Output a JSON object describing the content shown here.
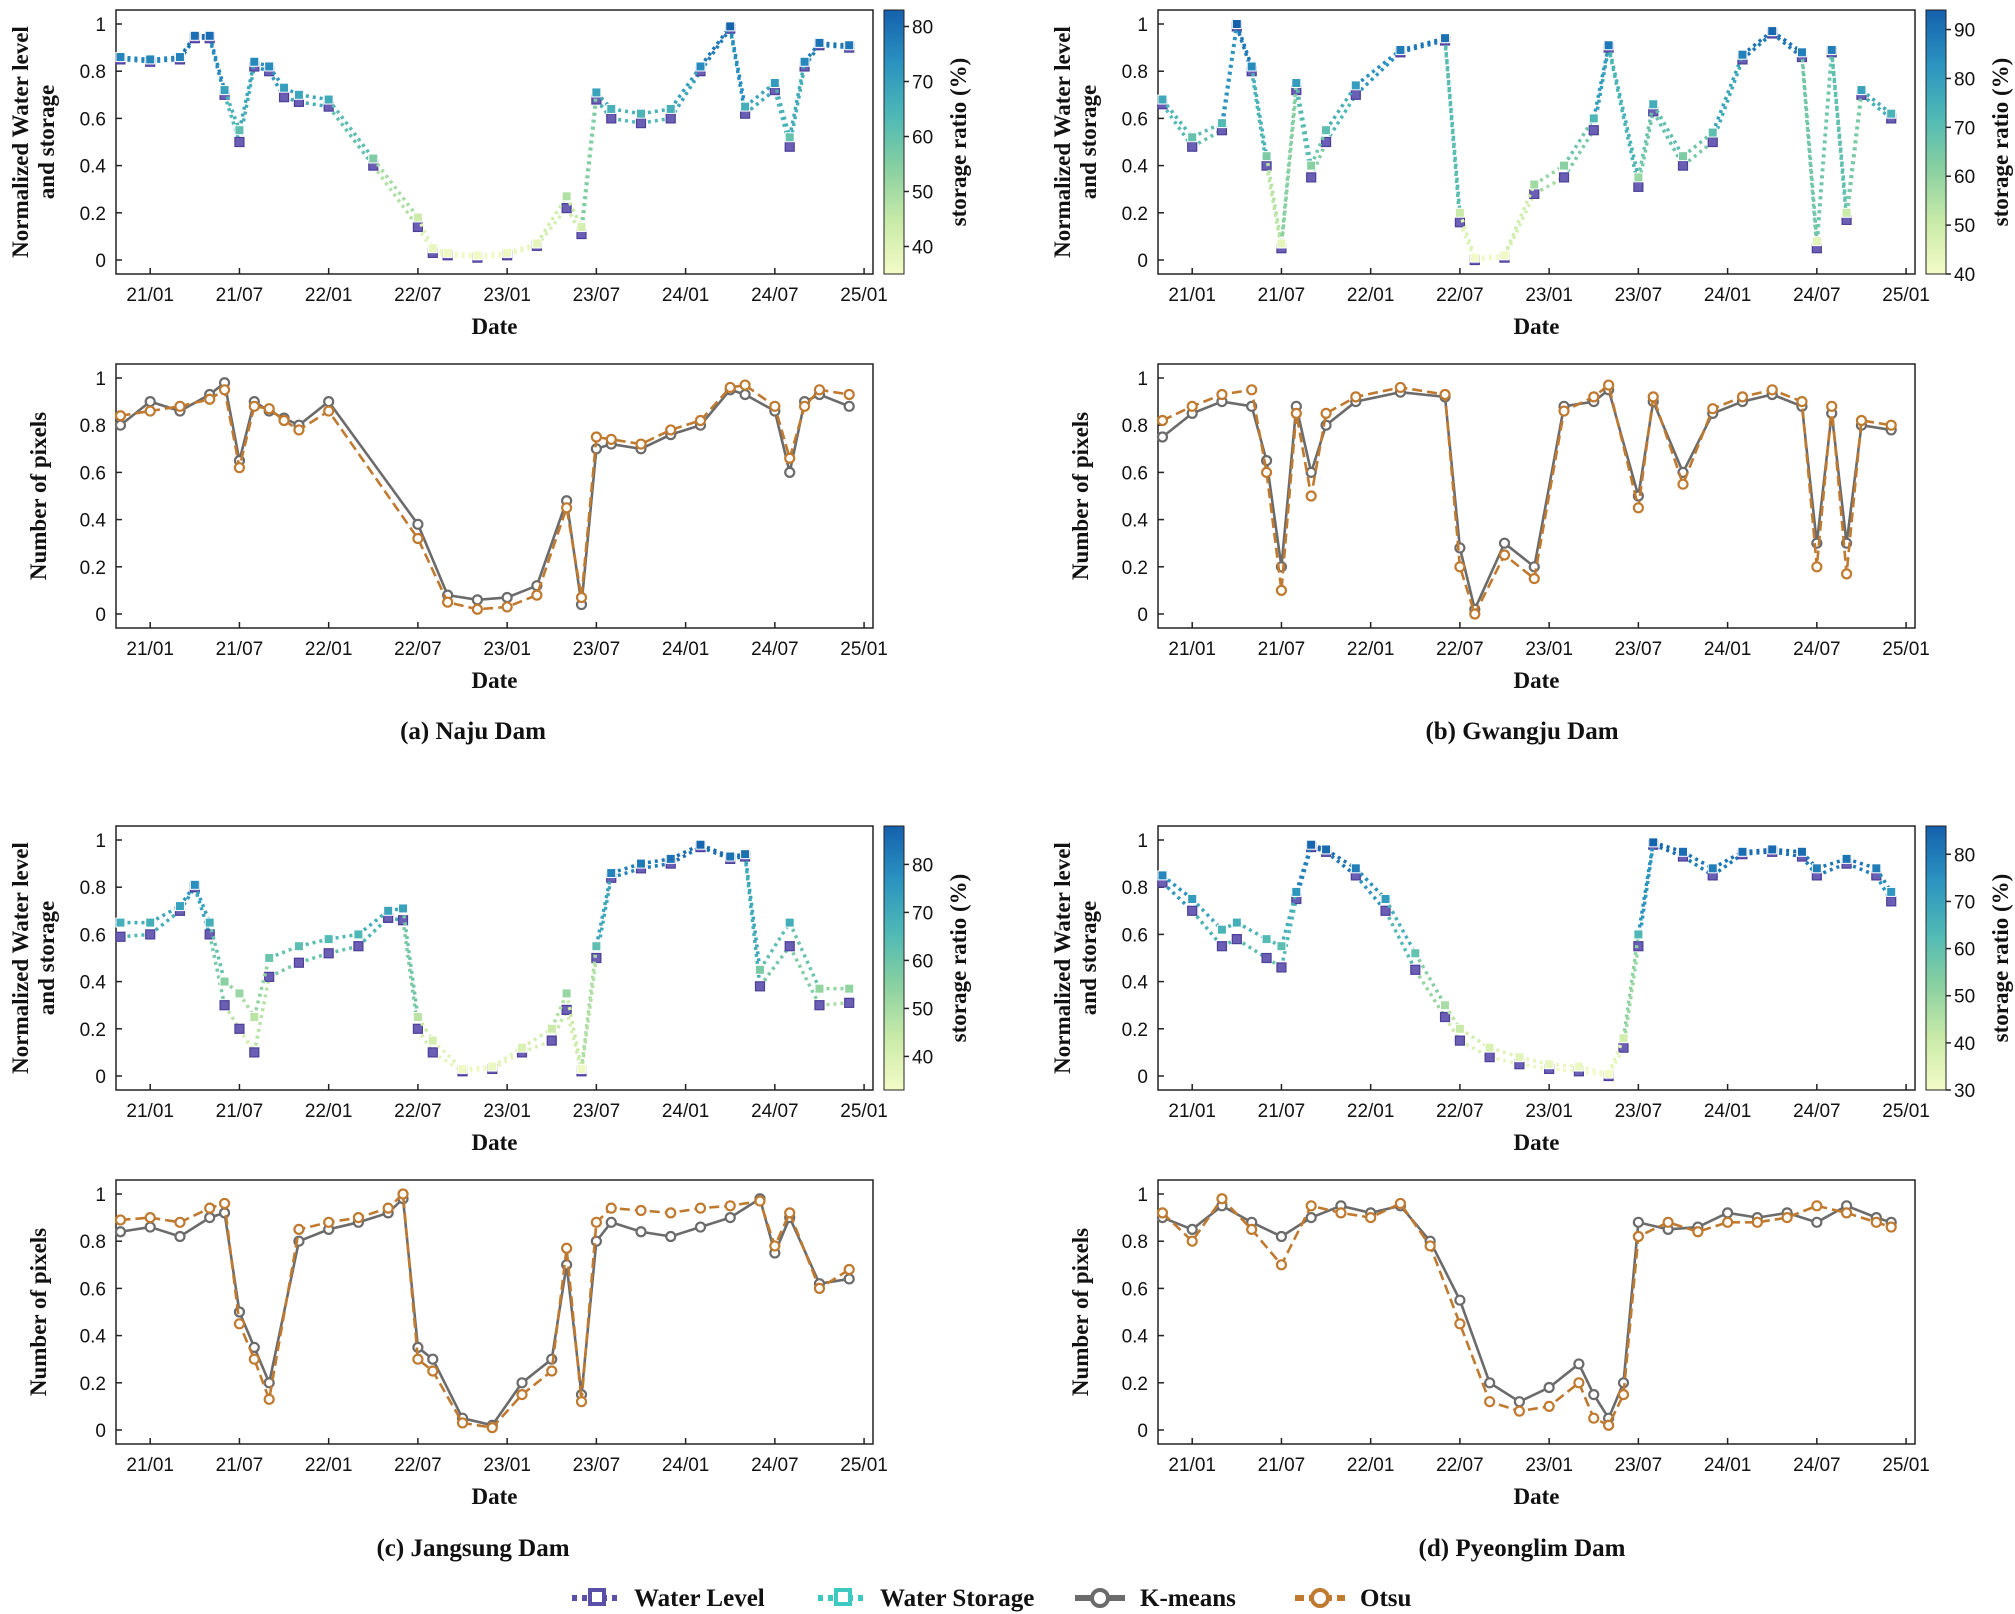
{
  "legend": [
    {
      "label": "Water Level",
      "color": "#5a4fa6",
      "marker": "square",
      "dash": "dotted"
    },
    {
      "label": "Water Storage",
      "color": "#3ec9c0",
      "marker": "square",
      "dash": "dotted"
    },
    {
      "label": "K-means",
      "color": "#6b6b6b",
      "marker": "circle",
      "dash": "solid"
    },
    {
      "label": "Otsu",
      "color": "#c07a30",
      "marker": "circle",
      "dash": "dashed"
    }
  ],
  "x_ticks": [
    "21/01",
    "21/07",
    "22/01",
    "22/07",
    "23/01",
    "23/07",
    "24/01",
    "24/07",
    "25/01"
  ],
  "colormap": [
    "#f4fbc7",
    "#c9eaa8",
    "#88d0a1",
    "#4eb8b6",
    "#2a92c0",
    "#1560ad"
  ],
  "chart_data": [
    {
      "type": "scatter",
      "dam": "Naju Dam",
      "caption": "(a) Naju Dam",
      "panel": "level",
      "xlabel": "Date",
      "ylabel": [
        "Normalized Water level",
        "and storage"
      ],
      "ylim": [
        0,
        1
      ],
      "yticks": [
        "0",
        "0.2",
        "0.4",
        "0.6",
        "0.8",
        "1"
      ],
      "colorbar": {
        "label": "storage ratio (%)",
        "min": 35,
        "max": 83,
        "ticks": [
          40,
          50,
          60,
          70,
          80
        ]
      },
      "x": [
        "20/11",
        "21/01",
        "21/03",
        "21/04",
        "21/05",
        "21/06",
        "21/07",
        "21/08",
        "21/09",
        "21/10",
        "21/11",
        "22/01",
        "22/04",
        "22/07",
        "22/08",
        "22/09",
        "22/11",
        "23/01",
        "23/03",
        "23/05",
        "23/06",
        "23/07",
        "23/08",
        "23/10",
        "23/12",
        "24/02",
        "24/04",
        "24/05",
        "24/07",
        "24/08",
        "24/09",
        "24/10",
        "24/12"
      ],
      "series": [
        {
          "name": "Water Level",
          "values": [
            0.85,
            0.84,
            0.85,
            0.94,
            0.94,
            0.7,
            0.5,
            0.82,
            0.8,
            0.69,
            0.67,
            0.65,
            0.4,
            0.14,
            0.03,
            0.02,
            0.01,
            0.02,
            0.06,
            0.22,
            0.11,
            0.68,
            0.6,
            0.58,
            0.6,
            0.8,
            0.98,
            0.62,
            0.72,
            0.48,
            0.82,
            0.91,
            0.9
          ]
        },
        {
          "name": "Water Storage",
          "values": [
            0.86,
            0.85,
            0.86,
            0.95,
            0.95,
            0.72,
            0.55,
            0.84,
            0.82,
            0.73,
            0.7,
            0.68,
            0.43,
            0.18,
            0.05,
            0.03,
            0.02,
            0.03,
            0.07,
            0.27,
            0.14,
            0.71,
            0.64,
            0.62,
            0.64,
            0.82,
            0.99,
            0.65,
            0.75,
            0.52,
            0.84,
            0.92,
            0.91
          ]
        }
      ]
    },
    {
      "type": "line",
      "dam": "Naju Dam",
      "panel": "pixels",
      "xlabel": "Date",
      "ylabel": "Number of pixels",
      "ylim": [
        0,
        1
      ],
      "yticks": [
        "0",
        "0.2",
        "0.4",
        "0.6",
        "0.8",
        "1"
      ],
      "x": [
        "20/11",
        "21/01",
        "21/03",
        "21/05",
        "21/06",
        "21/07",
        "21/08",
        "21/09",
        "21/10",
        "21/11",
        "22/01",
        "22/07",
        "22/09",
        "22/11",
        "23/01",
        "23/03",
        "23/05",
        "23/06",
        "23/07",
        "23/08",
        "23/10",
        "23/12",
        "24/02",
        "24/04",
        "24/05",
        "24/07",
        "24/08",
        "24/09",
        "24/10",
        "24/12"
      ],
      "series": [
        {
          "name": "K-means",
          "values": [
            0.8,
            0.9,
            0.86,
            0.93,
            0.98,
            0.65,
            0.9,
            0.86,
            0.83,
            0.8,
            0.9,
            0.38,
            0.08,
            0.06,
            0.07,
            0.12,
            0.48,
            0.04,
            0.7,
            0.72,
            0.7,
            0.76,
            0.8,
            0.95,
            0.93,
            0.86,
            0.6,
            0.9,
            0.93,
            0.88
          ]
        },
        {
          "name": "Otsu",
          "values": [
            0.84,
            0.86,
            0.88,
            0.91,
            0.95,
            0.62,
            0.88,
            0.87,
            0.82,
            0.78,
            0.86,
            0.32,
            0.05,
            0.02,
            0.03,
            0.08,
            0.45,
            0.07,
            0.75,
            0.74,
            0.72,
            0.78,
            0.82,
            0.96,
            0.97,
            0.88,
            0.66,
            0.88,
            0.95,
            0.93
          ]
        }
      ]
    },
    {
      "type": "scatter",
      "dam": "Gwangju Dam",
      "caption": "(b) Gwangju Dam",
      "panel": "level",
      "xlabel": "Date",
      "ylabel": [
        "Normalized Water level",
        "and storage"
      ],
      "ylim": [
        0,
        1
      ],
      "yticks": [
        "0",
        "0.2",
        "0.4",
        "0.6",
        "0.8",
        "1"
      ],
      "colorbar": {
        "label": "storage ratio (%)",
        "min": 40,
        "max": 94,
        "ticks": [
          40,
          50,
          60,
          70,
          80,
          90
        ]
      },
      "x": [
        "20/11",
        "21/01",
        "21/03",
        "21/04",
        "21/05",
        "21/06",
        "21/07",
        "21/08",
        "21/09",
        "21/10",
        "21/12",
        "22/03",
        "22/06",
        "22/07",
        "22/08",
        "22/10",
        "22/12",
        "23/02",
        "23/04",
        "23/05",
        "23/07",
        "23/08",
        "23/10",
        "23/12",
        "24/02",
        "24/04",
        "24/06",
        "24/07",
        "24/08",
        "24/09",
        "24/10",
        "24/12"
      ],
      "series": [
        {
          "name": "Water Level",
          "values": [
            0.66,
            0.48,
            0.55,
            0.99,
            0.8,
            0.4,
            0.05,
            0.72,
            0.35,
            0.5,
            0.7,
            0.88,
            0.93,
            0.16,
            0.0,
            0.01,
            0.28,
            0.35,
            0.55,
            0.9,
            0.31,
            0.63,
            0.4,
            0.5,
            0.85,
            0.96,
            0.86,
            0.05,
            0.88,
            0.17,
            0.7,
            0.6
          ]
        },
        {
          "name": "Water Storage",
          "values": [
            0.68,
            0.52,
            0.58,
            1.0,
            0.82,
            0.44,
            0.07,
            0.75,
            0.4,
            0.55,
            0.74,
            0.89,
            0.94,
            0.2,
            0.01,
            0.02,
            0.32,
            0.4,
            0.6,
            0.91,
            0.35,
            0.66,
            0.44,
            0.54,
            0.87,
            0.97,
            0.88,
            0.08,
            0.89,
            0.2,
            0.72,
            0.62
          ]
        }
      ]
    },
    {
      "type": "line",
      "dam": "Gwangju Dam",
      "panel": "pixels",
      "xlabel": "Date",
      "ylabel": "Number of pixels",
      "ylim": [
        0,
        1
      ],
      "yticks": [
        "0",
        "0.2",
        "0.4",
        "0.6",
        "0.8",
        "1"
      ],
      "x": [
        "20/11",
        "21/01",
        "21/03",
        "21/05",
        "21/06",
        "21/07",
        "21/08",
        "21/09",
        "21/10",
        "21/12",
        "22/03",
        "22/06",
        "22/07",
        "22/08",
        "22/10",
        "22/12",
        "23/02",
        "23/04",
        "23/05",
        "23/07",
        "23/08",
        "23/10",
        "23/12",
        "24/02",
        "24/04",
        "24/06",
        "24/07",
        "24/08",
        "24/09",
        "24/10",
        "24/12"
      ],
      "series": [
        {
          "name": "K-means",
          "values": [
            0.75,
            0.85,
            0.9,
            0.88,
            0.65,
            0.2,
            0.88,
            0.6,
            0.8,
            0.9,
            0.94,
            0.92,
            0.28,
            0.02,
            0.3,
            0.2,
            0.88,
            0.9,
            0.95,
            0.5,
            0.9,
            0.6,
            0.85,
            0.9,
            0.93,
            0.88,
            0.3,
            0.85,
            0.3,
            0.8,
            0.78
          ]
        },
        {
          "name": "Otsu",
          "values": [
            0.82,
            0.88,
            0.93,
            0.95,
            0.6,
            0.1,
            0.85,
            0.5,
            0.85,
            0.92,
            0.96,
            0.93,
            0.2,
            0.0,
            0.25,
            0.15,
            0.86,
            0.92,
            0.97,
            0.45,
            0.92,
            0.55,
            0.87,
            0.92,
            0.95,
            0.9,
            0.2,
            0.88,
            0.17,
            0.82,
            0.8
          ]
        }
      ]
    },
    {
      "type": "scatter",
      "dam": "Jangsung Dam",
      "caption": "(c) Jangsung Dam",
      "panel": "level",
      "xlabel": "Date",
      "ylabel": [
        "Normalized Water level",
        "and storage"
      ],
      "ylim": [
        0,
        1
      ],
      "yticks": [
        "0",
        "0.2",
        "0.4",
        "0.6",
        "0.8",
        "1"
      ],
      "colorbar": {
        "label": "storage ratio (%)",
        "min": 33,
        "max": 88,
        "ticks": [
          40,
          50,
          60,
          70,
          80
        ]
      },
      "x": [
        "20/11",
        "21/01",
        "21/03",
        "21/04",
        "21/05",
        "21/06",
        "21/07",
        "21/08",
        "21/09",
        "21/11",
        "22/01",
        "22/03",
        "22/05",
        "22/06",
        "22/07",
        "22/08",
        "22/10",
        "22/12",
        "23/02",
        "23/04",
        "23/05",
        "23/06",
        "23/07",
        "23/08",
        "23/10",
        "23/12",
        "24/02",
        "24/04",
        "24/05",
        "24/06",
        "24/08",
        "24/10",
        "24/12"
      ],
      "series": [
        {
          "name": "Water Level",
          "values": [
            0.59,
            0.6,
            0.7,
            0.8,
            0.6,
            0.3,
            0.2,
            0.1,
            0.42,
            0.48,
            0.52,
            0.55,
            0.67,
            0.66,
            0.2,
            0.1,
            0.02,
            0.03,
            0.1,
            0.15,
            0.28,
            0.02,
            0.5,
            0.84,
            0.88,
            0.9,
            0.97,
            0.92,
            0.93,
            0.38,
            0.55,
            0.3,
            0.31
          ]
        },
        {
          "name": "Water Storage",
          "values": [
            0.65,
            0.65,
            0.72,
            0.81,
            0.65,
            0.4,
            0.35,
            0.25,
            0.5,
            0.55,
            0.58,
            0.6,
            0.7,
            0.71,
            0.25,
            0.15,
            0.03,
            0.04,
            0.12,
            0.2,
            0.35,
            0.03,
            0.55,
            0.86,
            0.9,
            0.92,
            0.98,
            0.93,
            0.94,
            0.45,
            0.65,
            0.37,
            0.37
          ]
        }
      ]
    },
    {
      "type": "line",
      "dam": "Jangsung Dam",
      "panel": "pixels",
      "xlabel": "Date",
      "ylabel": "Number of pixels",
      "ylim": [
        0,
        1
      ],
      "yticks": [
        "0",
        "0.2",
        "0.4",
        "0.6",
        "0.8",
        "1"
      ],
      "x": [
        "20/11",
        "21/01",
        "21/03",
        "21/05",
        "21/06",
        "21/07",
        "21/08",
        "21/09",
        "21/11",
        "22/01",
        "22/03",
        "22/05",
        "22/06",
        "22/07",
        "22/08",
        "22/10",
        "22/12",
        "23/02",
        "23/04",
        "23/05",
        "23/06",
        "23/07",
        "23/08",
        "23/10",
        "23/12",
        "24/02",
        "24/04",
        "24/06",
        "24/07",
        "24/08",
        "24/10",
        "24/12"
      ],
      "series": [
        {
          "name": "K-means",
          "values": [
            0.84,
            0.86,
            0.82,
            0.9,
            0.92,
            0.5,
            0.35,
            0.2,
            0.8,
            0.85,
            0.88,
            0.92,
            0.98,
            0.35,
            0.3,
            0.05,
            0.02,
            0.2,
            0.3,
            0.7,
            0.15,
            0.8,
            0.88,
            0.84,
            0.82,
            0.86,
            0.9,
            0.98,
            0.75,
            0.9,
            0.62,
            0.64
          ]
        },
        {
          "name": "Otsu",
          "values": [
            0.89,
            0.9,
            0.88,
            0.94,
            0.96,
            0.45,
            0.3,
            0.13,
            0.85,
            0.88,
            0.9,
            0.94,
            1.0,
            0.3,
            0.25,
            0.03,
            0.01,
            0.15,
            0.25,
            0.77,
            0.12,
            0.88,
            0.94,
            0.93,
            0.92,
            0.94,
            0.95,
            0.97,
            0.78,
            0.92,
            0.6,
            0.68
          ]
        }
      ]
    },
    {
      "type": "scatter",
      "dam": "Pyeonglim Dam",
      "caption": "(d) Pyeonglim Dam",
      "panel": "level",
      "xlabel": "Date",
      "ylabel": [
        "Normalized Water level",
        "and storage"
      ],
      "ylim": [
        0,
        1
      ],
      "yticks": [
        "0",
        "0.2",
        "0.4",
        "0.6",
        "0.8",
        "1"
      ],
      "colorbar": {
        "label": "storage ratio (%)",
        "min": 30,
        "max": 86,
        "ticks": [
          30,
          40,
          50,
          60,
          70,
          80
        ]
      },
      "x": [
        "20/11",
        "21/01",
        "21/03",
        "21/04",
        "21/06",
        "21/07",
        "21/08",
        "21/09",
        "21/10",
        "21/12",
        "22/02",
        "22/04",
        "22/06",
        "22/07",
        "22/09",
        "22/11",
        "23/01",
        "23/03",
        "23/05",
        "23/06",
        "23/07",
        "23/08",
        "23/10",
        "23/12",
        "24/02",
        "24/04",
        "24/06",
        "24/07",
        "24/09",
        "24/11",
        "24/12"
      ],
      "series": [
        {
          "name": "Water Level",
          "values": [
            0.82,
            0.7,
            0.55,
            0.58,
            0.5,
            0.46,
            0.75,
            0.97,
            0.95,
            0.85,
            0.7,
            0.45,
            0.25,
            0.15,
            0.08,
            0.05,
            0.03,
            0.02,
            0.0,
            0.12,
            0.55,
            0.98,
            0.93,
            0.85,
            0.94,
            0.95,
            0.93,
            0.85,
            0.9,
            0.85,
            0.74
          ]
        },
        {
          "name": "Water Storage",
          "values": [
            0.85,
            0.75,
            0.62,
            0.65,
            0.58,
            0.55,
            0.78,
            0.98,
            0.96,
            0.88,
            0.75,
            0.52,
            0.3,
            0.2,
            0.12,
            0.08,
            0.05,
            0.04,
            0.01,
            0.16,
            0.6,
            0.99,
            0.95,
            0.88,
            0.95,
            0.96,
            0.95,
            0.88,
            0.92,
            0.88,
            0.78
          ]
        }
      ]
    },
    {
      "type": "line",
      "dam": "Pyeonglim Dam",
      "panel": "pixels",
      "xlabel": "Date",
      "ylabel": "Number of pixels",
      "ylim": [
        0,
        1
      ],
      "yticks": [
        "0",
        "0.2",
        "0.4",
        "0.6",
        "0.8",
        "1"
      ],
      "x": [
        "20/11",
        "21/01",
        "21/03",
        "21/05",
        "21/07",
        "21/09",
        "21/11",
        "22/01",
        "22/03",
        "22/05",
        "22/07",
        "22/09",
        "22/11",
        "23/01",
        "23/03",
        "23/04",
        "23/05",
        "23/06",
        "23/07",
        "23/09",
        "23/11",
        "24/01",
        "24/03",
        "24/05",
        "24/07",
        "24/09",
        "24/11",
        "24/12"
      ],
      "series": [
        {
          "name": "K-means",
          "values": [
            0.9,
            0.85,
            0.95,
            0.88,
            0.82,
            0.9,
            0.95,
            0.92,
            0.95,
            0.8,
            0.55,
            0.2,
            0.12,
            0.18,
            0.28,
            0.15,
            0.05,
            0.2,
            0.88,
            0.85,
            0.86,
            0.92,
            0.9,
            0.92,
            0.88,
            0.95,
            0.9,
            0.88
          ]
        },
        {
          "name": "Otsu",
          "values": [
            0.92,
            0.8,
            0.98,
            0.85,
            0.7,
            0.95,
            0.92,
            0.9,
            0.96,
            0.78,
            0.45,
            0.12,
            0.08,
            0.1,
            0.2,
            0.05,
            0.02,
            0.15,
            0.82,
            0.88,
            0.84,
            0.88,
            0.88,
            0.9,
            0.95,
            0.92,
            0.88,
            0.86
          ]
        }
      ]
    }
  ]
}
